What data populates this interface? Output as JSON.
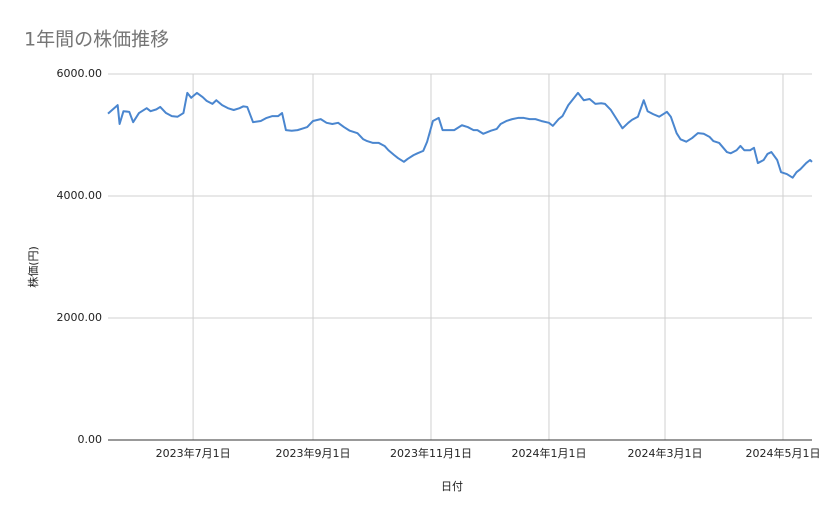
{
  "chart_data": {
    "type": "line",
    "title": "1年間の株価推移",
    "xlabel": "日付",
    "ylabel": "株価(円)",
    "x": [
      "2023-05-18",
      "2023-05-23",
      "2023-05-24",
      "2023-05-26",
      "2023-05-29",
      "2023-05-31",
      "2023-06-03",
      "2023-06-07",
      "2023-06-09",
      "2023-06-12",
      "2023-06-14",
      "2023-06-17",
      "2023-06-20",
      "2023-06-23",
      "2023-06-26",
      "2023-06-28",
      "2023-06-30",
      "2023-07-03",
      "2023-07-06",
      "2023-07-08",
      "2023-07-11",
      "2023-07-13",
      "2023-07-16",
      "2023-07-19",
      "2023-07-22",
      "2023-07-25",
      "2023-07-27",
      "2023-07-29",
      "2023-08-01",
      "2023-08-05",
      "2023-08-08",
      "2023-08-11",
      "2023-08-14",
      "2023-08-16",
      "2023-08-18",
      "2023-08-21",
      "2023-08-24",
      "2023-08-27",
      "2023-08-29",
      "2023-09-01",
      "2023-09-05",
      "2023-09-08",
      "2023-09-11",
      "2023-09-14",
      "2023-09-17",
      "2023-09-20",
      "2023-09-24",
      "2023-09-27",
      "2023-09-29",
      "2023-10-02",
      "2023-10-05",
      "2023-10-08",
      "2023-10-10",
      "2023-10-13",
      "2023-10-15",
      "2023-10-18",
      "2023-10-20",
      "2023-10-23",
      "2023-10-25",
      "2023-10-28",
      "2023-10-30",
      "2023-11-02",
      "2023-11-05",
      "2023-11-07",
      "2023-11-10",
      "2023-11-13",
      "2023-11-17",
      "2023-11-20",
      "2023-11-23",
      "2023-11-25",
      "2023-11-28",
      "2023-12-02",
      "2023-12-05",
      "2023-12-07",
      "2023-12-10",
      "2023-12-13",
      "2023-12-16",
      "2023-12-19",
      "2023-12-22",
      "2023-12-25",
      "2023-12-28",
      "2024-01-01",
      "2024-01-03",
      "2024-01-06",
      "2024-01-08",
      "2024-01-11",
      "2024-01-13",
      "2024-01-16",
      "2024-01-19",
      "2024-01-22",
      "2024-01-25",
      "2024-01-28",
      "2024-01-30",
      "2024-02-02",
      "2024-02-05",
      "2024-02-08",
      "2024-02-11",
      "2024-02-13",
      "2024-02-16",
      "2024-02-19",
      "2024-02-21",
      "2024-02-24",
      "2024-02-27",
      "2024-03-02",
      "2024-03-04",
      "2024-03-07",
      "2024-03-09",
      "2024-03-12",
      "2024-03-15",
      "2024-03-18",
      "2024-03-21",
      "2024-03-24",
      "2024-03-26",
      "2024-03-29",
      "2024-04-02",
      "2024-04-04",
      "2024-04-07",
      "2024-04-09",
      "2024-04-11",
      "2024-04-14",
      "2024-04-16",
      "2024-04-18",
      "2024-04-21",
      "2024-04-23",
      "2024-04-25",
      "2024-04-28",
      "2024-04-30",
      "2024-05-03",
      "2024-05-06",
      "2024-05-08",
      "2024-05-10",
      "2024-05-13",
      "2024-05-15",
      "2024-05-16"
    ],
    "series": [
      {
        "color": "#4a86cf",
        "values": [
          5350,
          5490,
          5180,
          5390,
          5380,
          5210,
          5360,
          5440,
          5390,
          5420,
          5460,
          5360,
          5310,
          5300,
          5360,
          5690,
          5610,
          5690,
          5620,
          5560,
          5510,
          5570,
          5490,
          5440,
          5410,
          5440,
          5470,
          5460,
          5210,
          5230,
          5280,
          5310,
          5310,
          5360,
          5080,
          5070,
          5080,
          5110,
          5130,
          5230,
          5260,
          5200,
          5180,
          5200,
          5130,
          5070,
          5030,
          4930,
          4900,
          4870,
          4870,
          4820,
          4750,
          4670,
          4620,
          4560,
          4610,
          4670,
          4700,
          4740,
          4890,
          5230,
          5280,
          5080,
          5080,
          5080,
          5160,
          5130,
          5080,
          5080,
          5020,
          5070,
          5100,
          5180,
          5230,
          5260,
          5280,
          5280,
          5260,
          5260,
          5230,
          5200,
          5150,
          5260,
          5310,
          5490,
          5570,
          5690,
          5570,
          5590,
          5510,
          5520,
          5510,
          5410,
          5260,
          5110,
          5200,
          5250,
          5300,
          5570,
          5390,
          5340,
          5300,
          5380,
          5300,
          5030,
          4930,
          4890,
          4950,
          5030,
          5020,
          4970,
          4900,
          4870,
          4720,
          4700,
          4750,
          4820,
          4750,
          4750,
          4790,
          4540,
          4590,
          4690,
          4720,
          4590,
          4390,
          4360,
          4300,
          4390,
          4440,
          4540,
          4590,
          4560
        ]
      }
    ],
    "xlim": [
      "2023-05-18",
      "2024-05-16"
    ],
    "xticks": [
      {
        "value": "2023-07-01",
        "label": "2023年7月1日"
      },
      {
        "value": "2023-09-01",
        "label": "2023年9月1日"
      },
      {
        "value": "2023-11-01",
        "label": "2023年11月1日"
      },
      {
        "value": "2024-01-01",
        "label": "2024年1月1日"
      },
      {
        "value": "2024-03-01",
        "label": "2024年3月1日"
      },
      {
        "value": "2024-05-01",
        "label": "2024年5月1日"
      }
    ],
    "ylim": [
      0,
      6000
    ],
    "yticks": [
      {
        "value": 0,
        "label": "0.00"
      },
      {
        "value": 2000,
        "label": "2000.00"
      },
      {
        "value": 4000,
        "label": "4000.00"
      },
      {
        "value": 6000,
        "label": "6000.00"
      }
    ],
    "grid": true
  }
}
